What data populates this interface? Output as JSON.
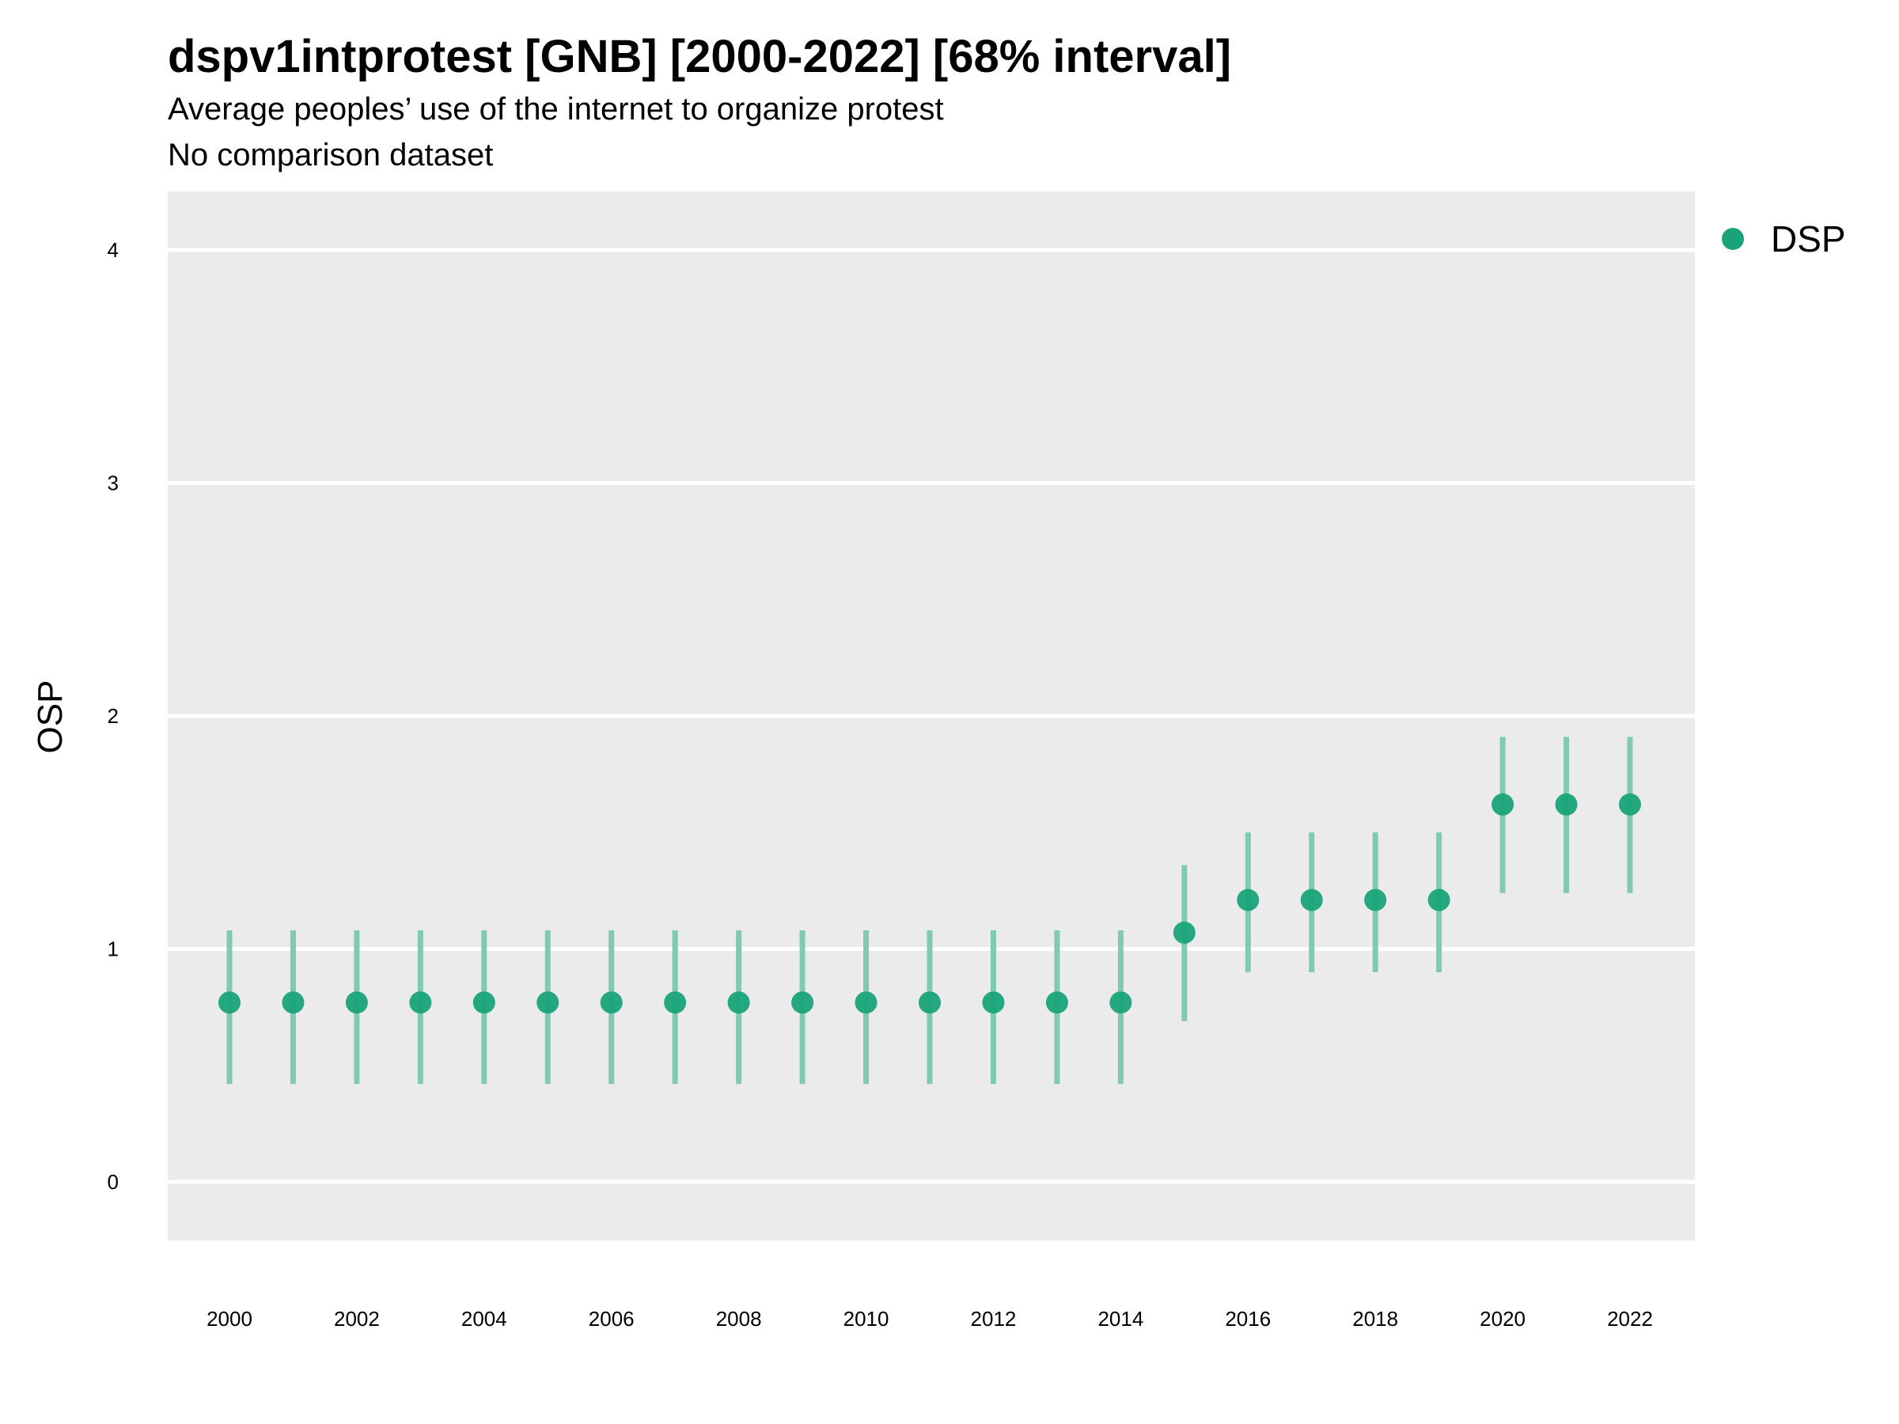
{
  "chart_data": {
    "type": "scatter",
    "title": "dspv1intprotest [GNB] [2000-2022] [68% interval]",
    "subtitle": "Average peoples’ use of the internet to organize protest",
    "subtitle2": "No comparison dataset",
    "ylabel": "OSP",
    "xlabel": "",
    "ylim": [
      -0.25,
      4.25
    ],
    "yticks": [
      "0",
      "1",
      "2",
      "3",
      "4"
    ],
    "xticks": [
      "2000",
      "2002",
      "2004",
      "2006",
      "2008",
      "2010",
      "2012",
      "2014",
      "2016",
      "2018",
      "2020",
      "2022"
    ],
    "grid": true,
    "legend_position": "right",
    "series": [
      {
        "name": "DSP",
        "color": "#1aa37a",
        "interval_color": "#7fcab0",
        "x": [
          2000,
          2001,
          2002,
          2003,
          2004,
          2005,
          2006,
          2007,
          2008,
          2009,
          2010,
          2011,
          2012,
          2013,
          2014,
          2015,
          2016,
          2017,
          2018,
          2019,
          2020,
          2021,
          2022
        ],
        "y": [
          0.77,
          0.77,
          0.77,
          0.77,
          0.77,
          0.77,
          0.77,
          0.77,
          0.77,
          0.77,
          0.77,
          0.77,
          0.77,
          0.77,
          0.77,
          1.07,
          1.21,
          1.21,
          1.21,
          1.21,
          1.62,
          1.62,
          1.62
        ],
        "lower": [
          0.42,
          0.42,
          0.42,
          0.42,
          0.42,
          0.42,
          0.42,
          0.42,
          0.42,
          0.42,
          0.42,
          0.42,
          0.42,
          0.42,
          0.42,
          0.69,
          0.9,
          0.9,
          0.9,
          0.9,
          1.24,
          1.24,
          1.24
        ],
        "upper": [
          1.08,
          1.08,
          1.08,
          1.08,
          1.08,
          1.08,
          1.08,
          1.08,
          1.08,
          1.08,
          1.08,
          1.08,
          1.08,
          1.08,
          1.08,
          1.36,
          1.5,
          1.5,
          1.5,
          1.5,
          1.91,
          1.91,
          1.91
        ]
      }
    ]
  }
}
